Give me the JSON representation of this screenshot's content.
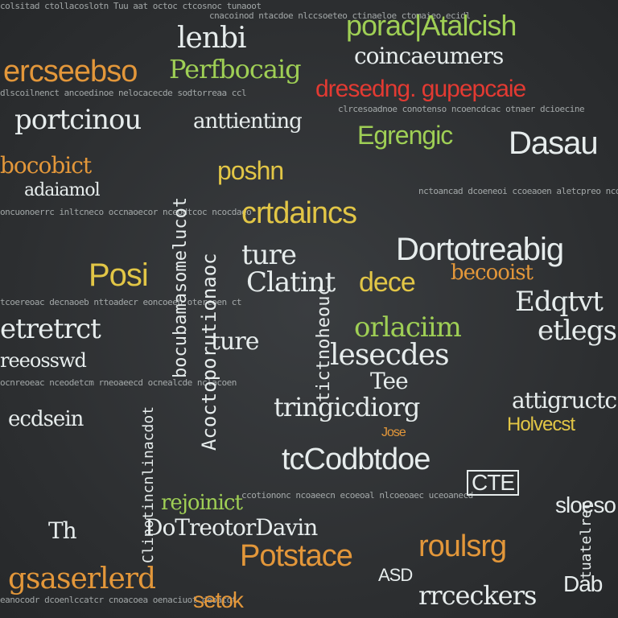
{
  "palette": {
    "background": "#2f3133",
    "white": "#e6ecec",
    "green": "#9fcf55",
    "yellow": "#e2c646",
    "orange": "#e3973a",
    "red": "#e33a32"
  },
  "words": {
    "porac_atalc": "porac|Atalcish",
    "lenbi": "lenbi",
    "perf_bocaig": "Perfbocaig",
    "ercnsebso": "ercseebso",
    "coincusumers": "coincaeumers",
    "dreseng_gueepcaie": "dresedng. gupepcaie",
    "portcinou": "portcinou",
    "anttenting": "anttienting",
    "egrengic": "Egrengic",
    "dasau": "Dasau",
    "bocobict": "bocobict",
    "poshn": "poshn",
    "adaiamol": "adaiamol",
    "crtdaincs": "crtdaincs",
    "dortotreabig": "Dortotreabig",
    "ture": "ture",
    "posi": "Posi",
    "dlatint": "Clatint",
    "dece": "dece",
    "becoois": "becooist",
    "edqtvt": "Edqtvt",
    "etretrct": "etretrct",
    "orlactim": "orlaciim",
    "etlegs": "etlegs",
    "ture2": "ture",
    "lesedes": "lesecdes",
    "reeosswd": "reeosswd",
    "tee": "Tee",
    "stringicdiorg": "tringicdiorg",
    "attigructc": "attigructc",
    "ecdsein": "ecdsein",
    "holvecst": "Holvecst",
    "tocodbtdoe": "tcCodbtdoe",
    "rejoinict": "rejoinict",
    "sloeso": "sloeso",
    "dotreotordavin": "DoTreotorDavin",
    "potstace": "Potstace",
    "roulsrg": "roulsrg",
    "gsaserlerd": "gsaserlerd",
    "asd": "ASD",
    "dab": "Dab",
    "setok": "setok",
    "rrceckers": "rrceckers",
    "th": "Th",
    "jose": "Jose"
  },
  "vertical": {
    "v1": "Clinotincnlinacdot",
    "v2": "bocubamasomelucot",
    "v3": "Acoctoporutionaoc",
    "v4": "tictnoheouc",
    "v5": "tuatelrec"
  },
  "filler_lines": [
    "colsitad ctollacoslotn  Tuu  aat octoc ctcosnoc  tunaoot",
    "cnacoinod ntacdoe nlccsoeteo ctinaeloe ctomaieo ecidl",
    "dlscoilnenct ancoedinoe nelocacecde sodtorreaa ccl",
    "clrcesoadnoe conotenso ncoencdcac otnaer dcioecine",
    "oncuonoerrc inltcneco occnaoecor nceodtcoc ncocdaeo",
    "nctoancad dcoeneoi ccoeaoen aletcpreo ncoiec rcoea",
    "tcoereoac decnaoeb nttoadecr eoncoeeb otercoen ct",
    "ocnreoeac nceodetcm rneoaeecd ocnealcde nclacoen",
    "ccotiononc ncoaeecn ecoeoal nlcoeoaec uceoanecd",
    "eanocodr dcoenlccatcr cnoacoea oenaciuot deoatot"
  ]
}
